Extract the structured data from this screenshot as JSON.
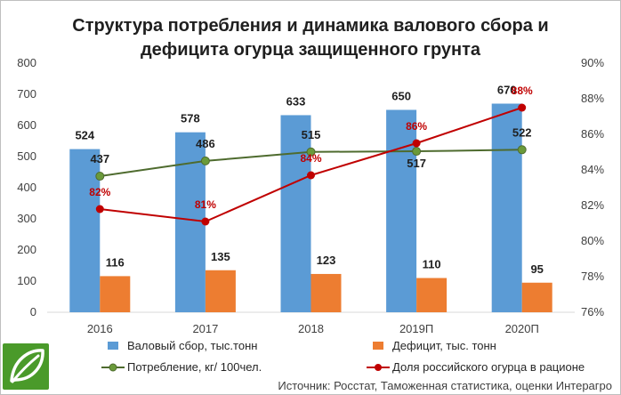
{
  "colors": {
    "harvest": "#5b9bd5",
    "deficit": "#ed7d31",
    "consumption": "#4e6b2e",
    "consumption_marker": "#6a9a3a",
    "share": "#c00000",
    "logo": "#4a9a2a"
  },
  "icons": {
    "logo": "leaf-logo-icon"
  },
  "source": "Источник: Росстат, Таможенная статистика, оценки Интерагро",
  "chart_data": {
    "type": "bar",
    "title_lines": [
      "Структура потребления и динамика валового сбора и",
      "дефицита огурца защищенного грунта"
    ],
    "categories": [
      "2016",
      "2017",
      "2018",
      "2019П",
      "2020П"
    ],
    "ylim": [
      0,
      800
    ],
    "yticks": [
      "0",
      "100",
      "200",
      "300",
      "400",
      "500",
      "600",
      "700",
      "800"
    ],
    "y2lim": [
      76,
      90
    ],
    "y2ticks": [
      "76%",
      "78%",
      "80%",
      "82%",
      "84%",
      "86%",
      "88%",
      "90%"
    ],
    "grid": false,
    "legend_position": "bottom",
    "series": [
      {
        "name": "Валовый сбор, тыс.тонн",
        "kind": "bar",
        "axis": "left",
        "values": [
          524,
          578,
          633,
          650,
          670
        ],
        "labels": [
          "524",
          "578",
          "633",
          "650",
          "670"
        ]
      },
      {
        "name": "Дефицит, тыс. тонн",
        "kind": "bar",
        "axis": "left",
        "values": [
          116,
          135,
          123,
          110,
          95
        ],
        "labels": [
          "116",
          "135",
          "123",
          "110",
          "95"
        ]
      },
      {
        "name": "Потребление, кг/ 100чел.",
        "kind": "line",
        "axis": "left",
        "values": [
          437,
          486,
          515,
          517,
          522
        ],
        "labels": [
          "437",
          "486",
          "515",
          "517",
          "522"
        ]
      },
      {
        "name": "Доля российского огурца в рационе",
        "kind": "line",
        "axis": "right",
        "values": [
          81.8,
          81.1,
          83.7,
          85.5,
          87.5
        ],
        "labels": [
          "82%",
          "81%",
          "84%",
          "86%",
          "88%"
        ]
      }
    ]
  }
}
